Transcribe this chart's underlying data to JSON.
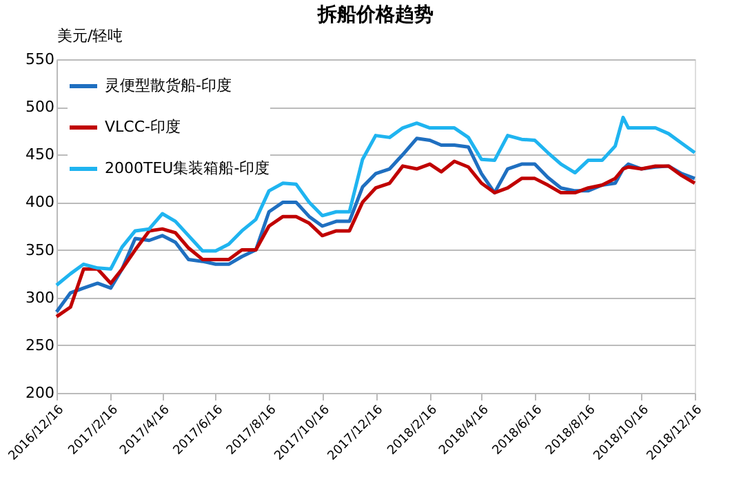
{
  "chart_data": {
    "type": "line",
    "title": "拆船价格趋势",
    "ylabel": "美元/轻吨",
    "x": [
      "2016-12-16",
      "2017-01-01",
      "2017-01-16",
      "2017-02-01",
      "2017-02-16",
      "2017-03-01",
      "2017-03-16",
      "2017-04-01",
      "2017-04-16",
      "2017-05-01",
      "2017-05-16",
      "2017-06-01",
      "2017-06-16",
      "2017-07-01",
      "2017-07-16",
      "2017-08-01",
      "2017-08-16",
      "2017-09-01",
      "2017-09-16",
      "2017-10-01",
      "2017-10-16",
      "2017-11-01",
      "2017-11-16",
      "2017-12-01",
      "2017-12-16",
      "2018-01-01",
      "2018-01-16",
      "2018-02-01",
      "2018-02-16",
      "2018-03-01",
      "2018-03-16",
      "2018-04-01",
      "2018-04-16",
      "2018-05-01",
      "2018-05-16",
      "2018-06-01",
      "2018-06-16",
      "2018-07-01",
      "2018-07-16",
      "2018-08-01",
      "2018-08-16",
      "2018-09-01",
      "2018-09-16",
      "2018-09-25",
      "2018-10-01",
      "2018-10-16",
      "2018-11-01",
      "2018-11-16",
      "2018-12-01",
      "2018-12-16"
    ],
    "series": [
      {
        "name": "灵便型散货船-印度",
        "color": "#1f6fc0",
        "values": [
          285,
          305,
          310,
          315,
          310,
          330,
          362,
          360,
          365,
          358,
          340,
          338,
          335,
          335,
          343,
          350,
          390,
          400,
          400,
          385,
          375,
          380,
          380,
          416,
          430,
          435,
          450,
          467,
          465,
          460,
          460,
          458,
          430,
          410,
          435,
          440,
          440,
          426,
          415,
          412,
          412,
          418,
          420,
          435,
          440,
          435,
          437,
          438,
          430,
          425
        ]
      },
      {
        "name": "VLCC-印度",
        "color": "#c00000",
        "values": [
          280,
          290,
          330,
          330,
          315,
          330,
          350,
          370,
          372,
          368,
          352,
          340,
          340,
          340,
          350,
          350,
          375,
          385,
          385,
          378,
          365,
          370,
          370,
          400,
          415,
          420,
          438,
          435,
          440,
          432,
          443,
          437,
          420,
          410,
          415,
          425,
          425,
          418,
          410,
          410,
          415,
          418,
          425,
          435,
          437,
          435,
          438,
          438,
          428,
          420
        ]
      },
      {
        "name": "2000TEU集装箱船-印度",
        "color": "#1fb4f0",
        "values": [
          313,
          325,
          335,
          331,
          330,
          353,
          370,
          372,
          388,
          380,
          365,
          349,
          349,
          356,
          370,
          382,
          412,
          420,
          419,
          400,
          386,
          390,
          390,
          445,
          470,
          468,
          478,
          483,
          478,
          478,
          478,
          468,
          445,
          444,
          470,
          466,
          465,
          452,
          440,
          431,
          444,
          444,
          459,
          489,
          478,
          478,
          478,
          472,
          462,
          452
        ]
      }
    ],
    "xlim": [
      "2016-12-16",
      "2018-12-16"
    ],
    "xticks": [
      {
        "value": "2016-12-16",
        "label": "2016/12/16"
      },
      {
        "value": "2017-02-16",
        "label": "2017/2/16"
      },
      {
        "value": "2017-04-16",
        "label": "2017/4/16"
      },
      {
        "value": "2017-06-16",
        "label": "2017/6/16"
      },
      {
        "value": "2017-08-16",
        "label": "2017/8/16"
      },
      {
        "value": "2017-10-16",
        "label": "2017/10/16"
      },
      {
        "value": "2017-12-16",
        "label": "2017/12/16"
      },
      {
        "value": "2018-02-16",
        "label": "2018/2/16"
      },
      {
        "value": "2018-04-16",
        "label": "2018/4/16"
      },
      {
        "value": "2018-06-16",
        "label": "2018/6/16"
      },
      {
        "value": "2018-08-16",
        "label": "2018/8/16"
      },
      {
        "value": "2018-10-16",
        "label": "2018/10/16"
      },
      {
        "value": "2018-12-16",
        "label": "2018/12/16"
      }
    ],
    "ylim": [
      200,
      550
    ],
    "yticks": [
      200,
      250,
      300,
      350,
      400,
      450,
      500,
      550
    ],
    "grid": "y",
    "legend": "top left",
    "marker": "none",
    "line_style": "solid"
  }
}
